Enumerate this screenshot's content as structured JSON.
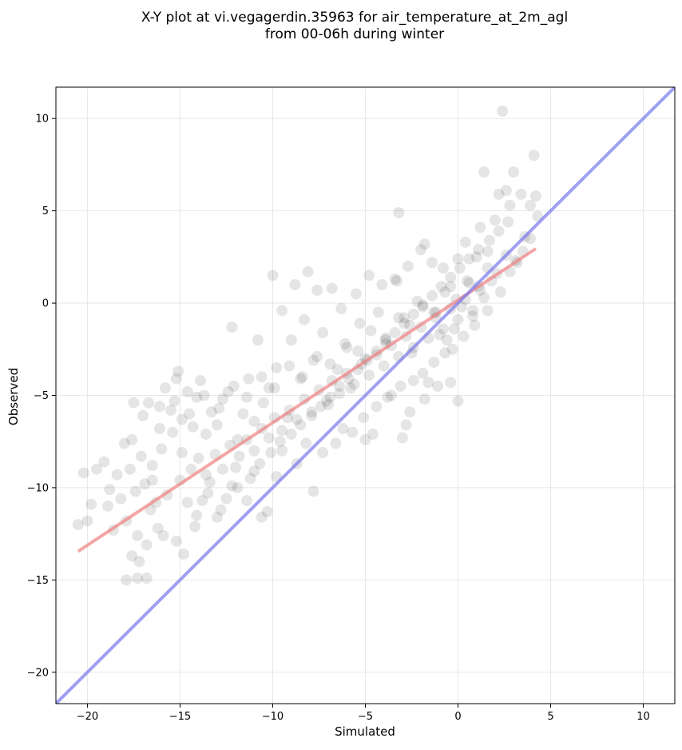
{
  "chart_data": {
    "type": "scatter",
    "title": "X-Y plot at vi.vegagerdin.35963 for air_temperature_at_2m_agl",
    "subtitle": "from 00-06h during winter",
    "xlabel": "Simulated",
    "ylabel": "Observed",
    "xlim": [
      -21.7,
      11.7
    ],
    "ylim": [
      -21.7,
      11.7
    ],
    "xticks": [
      -20,
      -15,
      -10,
      -5,
      0,
      5,
      10
    ],
    "yticks": [
      -20,
      -15,
      -10,
      -5,
      0,
      5,
      10
    ],
    "xtick_labels": [
      "−20",
      "−15",
      "−10",
      "−5",
      "0",
      "5",
      "10"
    ],
    "ytick_labels": [
      "−20",
      "−15",
      "−10",
      "−5",
      "0",
      "5",
      "10"
    ],
    "grid": true,
    "points": [
      [
        -20.5,
        -12.0
      ],
      [
        -20.2,
        -9.2
      ],
      [
        -20.0,
        -11.8
      ],
      [
        -19.8,
        -10.9
      ],
      [
        -19.5,
        -9.0
      ],
      [
        -19.1,
        -8.6
      ],
      [
        -18.9,
        -11.0
      ],
      [
        -18.8,
        -10.1
      ],
      [
        -18.6,
        -12.3
      ],
      [
        -18.4,
        -9.3
      ],
      [
        -18.2,
        -10.6
      ],
      [
        -18.0,
        -7.6
      ],
      [
        -17.9,
        -11.8
      ],
      [
        -17.7,
        -9.0
      ],
      [
        -17.6,
        -7.4
      ],
      [
        -17.4,
        -10.2
      ],
      [
        -17.3,
        -12.6
      ],
      [
        -17.1,
        -8.3
      ],
      [
        -16.9,
        -9.8
      ],
      [
        -16.8,
        -13.1
      ],
      [
        -16.6,
        -11.2
      ],
      [
        -16.5,
        -8.8
      ],
      [
        -16.3,
        -10.8
      ],
      [
        -16.2,
        -12.2
      ],
      [
        -16.0,
        -7.9
      ],
      [
        -17.9,
        -15.0
      ],
      [
        -17.3,
        -14.9
      ],
      [
        -16.8,
        -14.9
      ],
      [
        -17.6,
        -13.7
      ],
      [
        -17.2,
        -14.0
      ],
      [
        -17.5,
        -5.4
      ],
      [
        -17.0,
        -6.1
      ],
      [
        -16.7,
        -5.4
      ],
      [
        -16.1,
        -5.6
      ],
      [
        -15.8,
        -4.6
      ],
      [
        -15.5,
        -5.8
      ],
      [
        -15.2,
        -4.1
      ],
      [
        -15.1,
        -3.7
      ],
      [
        -14.9,
        -6.3
      ],
      [
        -14.6,
        -4.8
      ],
      [
        -14.3,
        -6.7
      ],
      [
        -14.1,
        -5.1
      ],
      [
        -13.9,
        -4.2
      ],
      [
        -13.6,
        -7.1
      ],
      [
        -13.3,
        -5.9
      ],
      [
        -13.0,
        -6.6
      ],
      [
        -12.7,
        -5.2
      ],
      [
        -12.4,
        -4.8
      ],
      [
        -12.2,
        -1.3
      ],
      [
        -11.9,
        -7.4
      ],
      [
        -11.6,
        -6.0
      ],
      [
        -11.3,
        -4.1
      ],
      [
        -11.0,
        -6.4
      ],
      [
        -10.8,
        -2.0
      ],
      [
        -10.5,
        -5.4
      ],
      [
        -10.2,
        -4.6
      ],
      [
        -10.0,
        1.5
      ],
      [
        -9.8,
        -3.5
      ],
      [
        -9.5,
        -0.4
      ],
      [
        -9.2,
        -6.2
      ],
      [
        -9.0,
        -2.0
      ],
      [
        -8.8,
        1.0
      ],
      [
        -8.5,
        -4.1
      ],
      [
        -8.3,
        -0.9
      ],
      [
        -8.1,
        1.7
      ],
      [
        -7.8,
        -3.1
      ],
      [
        -7.6,
        0.7
      ],
      [
        -7.3,
        -1.6
      ],
      [
        -7.0,
        -5.5
      ],
      [
        -6.8,
        0.8
      ],
      [
        -6.5,
        -3.6
      ],
      [
        -6.3,
        -0.3
      ],
      [
        -6.0,
        -2.4
      ],
      [
        -5.8,
        -4.6
      ],
      [
        -5.5,
        0.5
      ],
      [
        -5.3,
        -1.1
      ],
      [
        -5.0,
        -3.0
      ],
      [
        -4.8,
        1.5
      ],
      [
        -4.6,
        -7.1
      ],
      [
        -4.3,
        -0.5
      ],
      [
        -4.1,
        1.0
      ],
      [
        -3.9,
        -2.2
      ],
      [
        -3.6,
        -5.0
      ],
      [
        -3.4,
        1.3
      ],
      [
        -3.2,
        4.9
      ],
      [
        -2.9,
        -0.8
      ],
      [
        -2.7,
        2.0
      ],
      [
        -2.5,
        -2.7
      ],
      [
        -2.2,
        0.1
      ],
      [
        -2.0,
        2.9
      ],
      [
        -1.8,
        3.2
      ],
      [
        -1.6,
        -4.3
      ],
      [
        -1.4,
        2.2
      ],
      [
        -1.2,
        -0.5
      ],
      [
        -1.0,
        -1.7
      ],
      [
        -0.8,
        1.9
      ],
      [
        -0.6,
        -2.0
      ],
      [
        -0.4,
        0.9
      ],
      [
        -0.2,
        -1.4
      ],
      [
        0.0,
        2.4
      ],
      [
        0.2,
        -0.2
      ],
      [
        0.4,
        3.3
      ],
      [
        0.6,
        1.1
      ],
      [
        0.8,
        -0.7
      ],
      [
        1.0,
        2.5
      ],
      [
        1.2,
        4.1
      ],
      [
        1.4,
        0.3
      ],
      [
        1.6,
        2.8
      ],
      [
        1.8,
        1.2
      ],
      [
        2.0,
        4.5
      ],
      [
        2.2,
        5.9
      ],
      [
        2.4,
        10.4
      ],
      [
        2.6,
        6.1
      ],
      [
        2.8,
        5.3
      ],
      [
        3.0,
        7.1
      ],
      [
        3.2,
        2.2
      ],
      [
        3.4,
        5.9
      ],
      [
        3.6,
        3.6
      ],
      [
        3.9,
        5.3
      ],
      [
        4.1,
        8.0
      ],
      [
        4.2,
        5.8
      ],
      [
        4.3,
        4.7
      ],
      [
        1.4,
        7.1
      ],
      [
        -3.3,
        1.2
      ],
      [
        -2.6,
        -5.9
      ],
      [
        -2.8,
        -6.6
      ],
      [
        -3.0,
        -7.3
      ],
      [
        -5.0,
        -7.4
      ],
      [
        -8.2,
        -7.6
      ],
      [
        -7.8,
        -10.2
      ],
      [
        -9.5,
        -8.0
      ],
      [
        -10.6,
        -11.6
      ],
      [
        -10.3,
        -11.3
      ],
      [
        -12.2,
        -9.9
      ],
      [
        -13.8,
        -10.7
      ],
      [
        -14.8,
        -13.6
      ],
      [
        -15.2,
        -12.9
      ],
      [
        -15.9,
        -12.6
      ],
      [
        -14.2,
        -12.1
      ],
      [
        -12.8,
        -11.2
      ],
      [
        -11.4,
        -10.7
      ],
      [
        -13.4,
        -9.7
      ],
      [
        -12.0,
        -8.9
      ],
      [
        -11.0,
        -9.1
      ],
      [
        -9.8,
        -9.4
      ],
      [
        -8.7,
        -8.7
      ],
      [
        -7.3,
        -8.1
      ],
      [
        -6.6,
        -7.6
      ],
      [
        -6.2,
        -6.8
      ],
      [
        -5.7,
        -7.0
      ],
      [
        -5.1,
        -6.2
      ],
      [
        -4.4,
        -5.6
      ],
      [
        -3.8,
        -5.1
      ],
      [
        -3.1,
        -4.5
      ],
      [
        -2.4,
        -4.2
      ],
      [
        -1.9,
        -3.8
      ],
      [
        -1.3,
        -3.2
      ],
      [
        -0.7,
        -2.7
      ],
      [
        -0.3,
        -2.5
      ],
      [
        0.3,
        -1.8
      ],
      [
        0.9,
        -1.2
      ],
      [
        1.6,
        -0.4
      ],
      [
        2.3,
        0.6
      ],
      [
        2.8,
        1.7
      ],
      [
        3.5,
        2.8
      ],
      [
        3.9,
        3.5
      ],
      [
        0.0,
        -5.3
      ],
      [
        -0.4,
        -4.3
      ],
      [
        -1.1,
        -4.5
      ],
      [
        -1.8,
        -5.2
      ],
      [
        -15.4,
        -7.0
      ],
      [
        -14.9,
        -8.1
      ],
      [
        -14.4,
        -9.0
      ],
      [
        -14.0,
        -8.4
      ],
      [
        -13.6,
        -9.3
      ],
      [
        -13.1,
        -8.2
      ],
      [
        -12.7,
        -9.0
      ],
      [
        -12.3,
        -7.7
      ],
      [
        -11.8,
        -8.3
      ],
      [
        -11.4,
        -7.4
      ],
      [
        -11.0,
        -8.0
      ],
      [
        -10.6,
        -6.8
      ],
      [
        -10.2,
        -7.3
      ],
      [
        -9.9,
        -6.2
      ],
      [
        -9.5,
        -6.9
      ],
      [
        -9.1,
        -5.8
      ],
      [
        -8.7,
        -6.3
      ],
      [
        -8.3,
        -5.2
      ],
      [
        -7.9,
        -5.9
      ],
      [
        -7.5,
        -4.7
      ],
      [
        -7.1,
        -5.3
      ],
      [
        -6.8,
        -4.2
      ],
      [
        -6.4,
        -4.9
      ],
      [
        -6.0,
        -3.8
      ],
      [
        -5.6,
        -4.4
      ],
      [
        -5.2,
        -3.3
      ],
      [
        -4.8,
        -3.9
      ],
      [
        -4.4,
        -2.8
      ],
      [
        -4.0,
        -3.4
      ],
      [
        -3.6,
        -2.3
      ],
      [
        -3.2,
        -2.9
      ],
      [
        -2.8,
        -1.8
      ],
      [
        -2.4,
        -2.4
      ],
      [
        -2.0,
        -1.3
      ],
      [
        -1.6,
        -1.9
      ],
      [
        -1.2,
        -0.8
      ],
      [
        -0.8,
        -1.4
      ],
      [
        -0.4,
        -0.3
      ],
      [
        0.0,
        -0.9
      ],
      [
        0.4,
        0.2
      ],
      [
        0.8,
        -0.4
      ],
      [
        1.2,
        0.7
      ],
      [
        -16.5,
        -9.6
      ],
      [
        -15.7,
        -10.4
      ],
      [
        -15.0,
        -9.6
      ],
      [
        -14.6,
        -10.8
      ],
      [
        -14.1,
        -11.5
      ],
      [
        -13.5,
        -10.3
      ],
      [
        -13.0,
        -11.6
      ],
      [
        -12.5,
        -10.6
      ],
      [
        -11.9,
        -10.0
      ],
      [
        -11.2,
        -9.5
      ],
      [
        -10.7,
        -8.7
      ],
      [
        -10.1,
        -8.1
      ],
      [
        -9.6,
        -7.5
      ],
      [
        -9.0,
        -7.1
      ],
      [
        -8.5,
        -6.6
      ],
      [
        -7.9,
        -6.1
      ],
      [
        -7.4,
        -5.6
      ],
      [
        -6.9,
        -5.1
      ],
      [
        -6.4,
        -4.5
      ],
      [
        -5.9,
        -4.1
      ],
      [
        -5.4,
        -3.6
      ],
      [
        -4.9,
        -3.1
      ],
      [
        -4.4,
        -2.6
      ],
      [
        -3.9,
        -2.0
      ],
      [
        -3.4,
        -1.6
      ],
      [
        -2.9,
        -1.1
      ],
      [
        -2.4,
        -0.6
      ],
      [
        -1.9,
        -0.1
      ],
      [
        -1.4,
        0.4
      ],
      [
        -0.9,
        0.9
      ],
      [
        -0.4,
        1.4
      ],
      [
        0.1,
        1.9
      ],
      [
        0.6,
        2.4
      ],
      [
        1.1,
        2.9
      ],
      [
        1.7,
        3.4
      ],
      [
        2.2,
        3.9
      ],
      [
        2.7,
        4.4
      ],
      [
        -16.1,
        -6.8
      ],
      [
        -15.3,
        -5.3
      ],
      [
        -14.5,
        -6.0
      ],
      [
        -13.7,
        -5.0
      ],
      [
        -12.9,
        -5.7
      ],
      [
        -12.1,
        -4.5
      ],
      [
        -11.4,
        -5.1
      ],
      [
        -10.6,
        -4.0
      ],
      [
        -9.9,
        -4.6
      ],
      [
        -9.1,
        -3.4
      ],
      [
        -8.4,
        -4.0
      ],
      [
        -7.6,
        -2.9
      ],
      [
        -6.9,
        -3.3
      ],
      [
        -6.1,
        -2.2
      ],
      [
        -5.4,
        -2.6
      ],
      [
        -4.7,
        -1.5
      ],
      [
        -3.9,
        -1.9
      ],
      [
        -3.2,
        -0.8
      ],
      [
        -2.6,
        -1.2
      ],
      [
        -1.9,
        -0.2
      ],
      [
        -1.3,
        -0.5
      ],
      [
        -0.7,
        0.6
      ],
      [
        -0.1,
        0.2
      ],
      [
        0.5,
        1.2
      ],
      [
        1.1,
        0.9
      ],
      [
        1.6,
        1.9
      ],
      [
        2.1,
        1.6
      ],
      [
        2.6,
        2.6
      ],
      [
        3.1,
        2.3
      ]
    ],
    "series": [
      {
        "type": "regression",
        "color": "#f08080",
        "x": [
          -20.5,
          4.2
        ],
        "y": [
          -13.45,
          2.95
        ]
      },
      {
        "type": "identity",
        "color": "#7777ee",
        "x": [
          -21.7,
          11.7
        ],
        "y": [
          -21.7,
          11.7
        ]
      }
    ],
    "colors": {
      "points": "#000000",
      "regression": "#f08080",
      "identity": "#7777ee",
      "grid": "#e8e8e8"
    }
  }
}
